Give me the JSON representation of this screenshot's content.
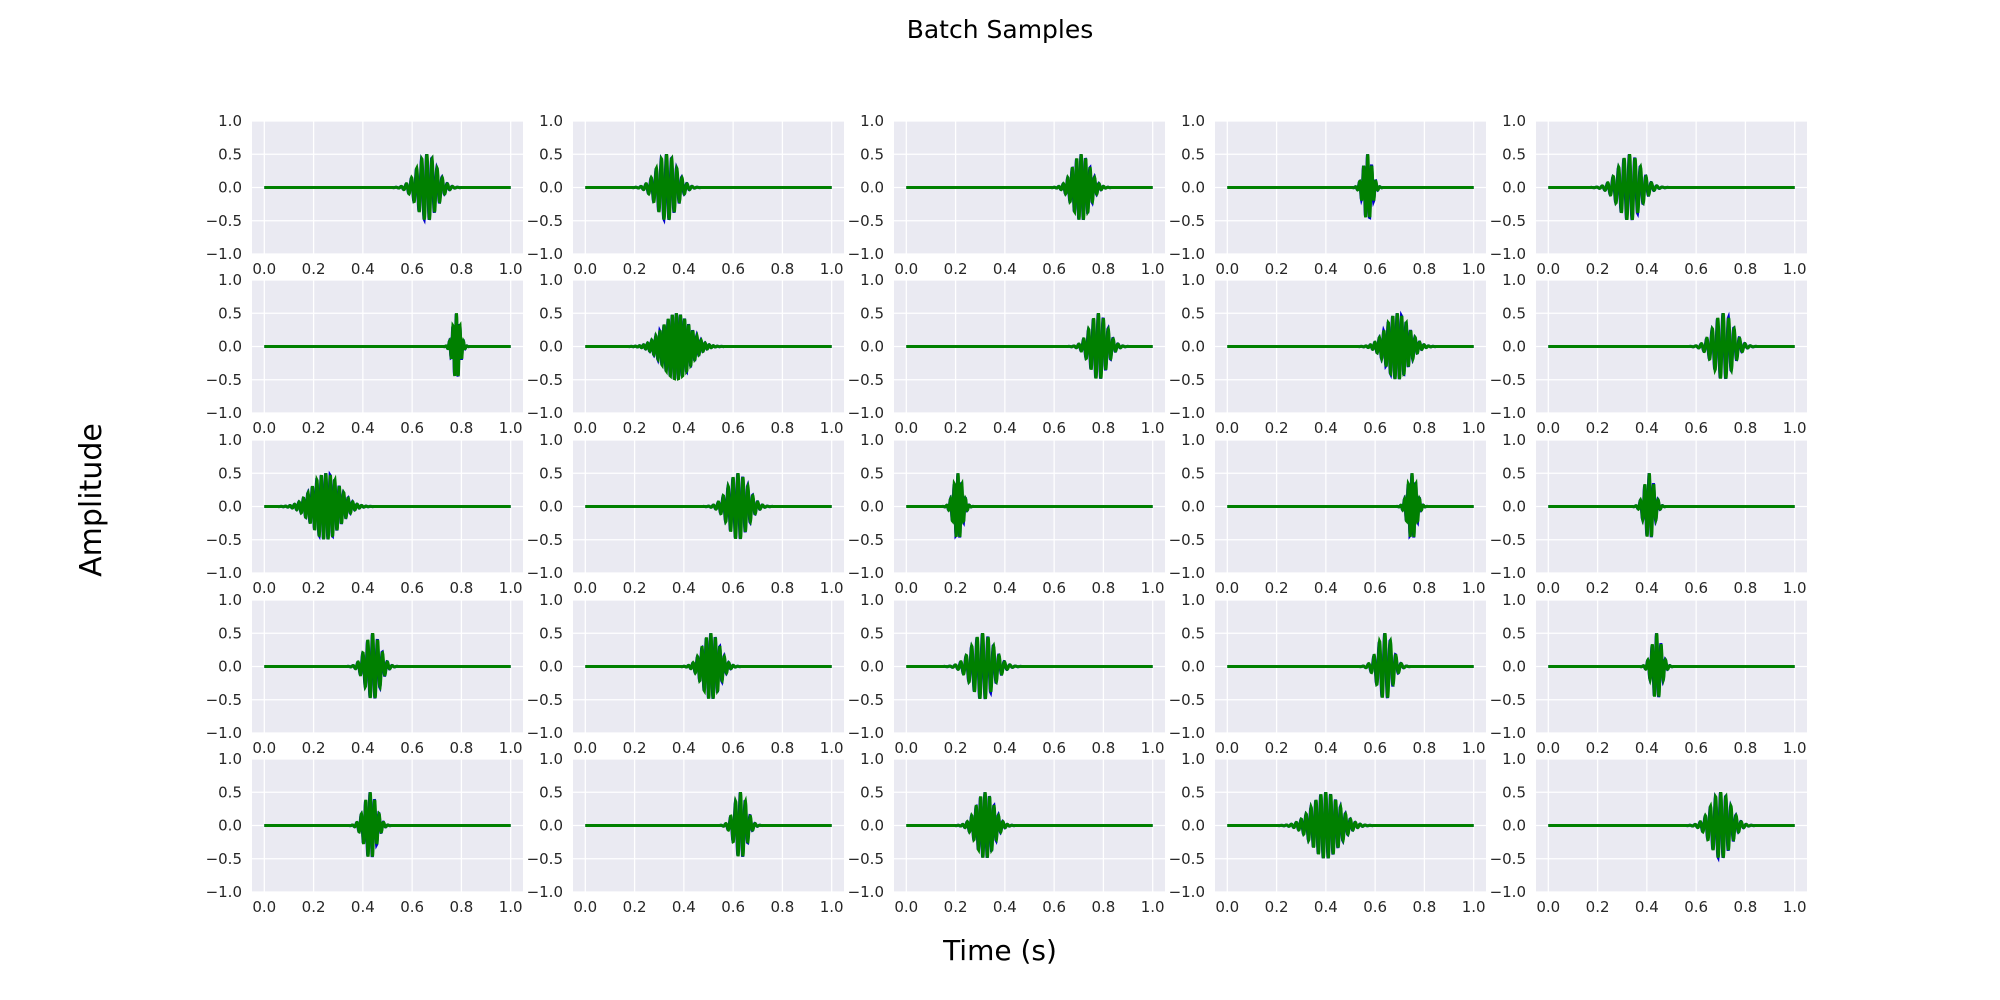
{
  "figure": {
    "title": "Batch Samples",
    "xlabel": "Time (s)",
    "ylabel": "Amplitude",
    "style": {
      "panel_bg": "#eaeaf2",
      "grid": "#ffffff",
      "blue": "#0000cc",
      "green": "#008000",
      "text": "#262626"
    }
  },
  "chart_data": {
    "type": "line",
    "grid": true,
    "layout": {
      "rows": 5,
      "cols": 5
    },
    "xlim": [
      0,
      1
    ],
    "ylim": [
      -1,
      1
    ],
    "xticks": [
      0.0,
      0.2,
      0.4,
      0.6,
      0.8,
      1.0
    ],
    "xtick_labels": [
      "0.0",
      "0.2",
      "0.4",
      "0.6",
      "0.8",
      "1.0"
    ],
    "yticks": [
      1.0,
      0.5,
      0.0,
      -0.5,
      -1.0
    ],
    "ytick_labels": [
      "1.0",
      "0.5",
      "0.0",
      "−0.5",
      "−1.0"
    ],
    "series_colors": [
      "#0000cc",
      "#008000"
    ],
    "amplitude": 0.5,
    "panels": [
      {
        "center": 0.66,
        "width": 0.04,
        "freq": 48
      },
      {
        "center": 0.33,
        "width": 0.04,
        "freq": 48
      },
      {
        "center": 0.71,
        "width": 0.035,
        "freq": 55
      },
      {
        "center": 0.57,
        "width": 0.018,
        "freq": 60
      },
      {
        "center": 0.33,
        "width": 0.045,
        "freq": 45
      },
      {
        "center": 0.78,
        "width": 0.015,
        "freq": 70
      },
      {
        "center": 0.37,
        "width": 0.055,
        "freq": 60
      },
      {
        "center": 0.78,
        "width": 0.035,
        "freq": 50
      },
      {
        "center": 0.69,
        "width": 0.045,
        "freq": 55
      },
      {
        "center": 0.71,
        "width": 0.04,
        "freq": 45
      },
      {
        "center": 0.25,
        "width": 0.055,
        "freq": 55
      },
      {
        "center": 0.62,
        "width": 0.04,
        "freq": 50
      },
      {
        "center": 0.21,
        "width": 0.018,
        "freq": 65
      },
      {
        "center": 0.75,
        "width": 0.018,
        "freq": 65
      },
      {
        "center": 0.41,
        "width": 0.02,
        "freq": 55
      },
      {
        "center": 0.44,
        "width": 0.03,
        "freq": 50
      },
      {
        "center": 0.51,
        "width": 0.035,
        "freq": 55
      },
      {
        "center": 0.31,
        "width": 0.045,
        "freq": 45
      },
      {
        "center": 0.64,
        "width": 0.03,
        "freq": 45
      },
      {
        "center": 0.44,
        "width": 0.02,
        "freq": 55
      },
      {
        "center": 0.43,
        "width": 0.025,
        "freq": 55
      },
      {
        "center": 0.63,
        "width": 0.025,
        "freq": 50
      },
      {
        "center": 0.32,
        "width": 0.035,
        "freq": 55
      },
      {
        "center": 0.4,
        "width": 0.055,
        "freq": 50
      },
      {
        "center": 0.7,
        "width": 0.04,
        "freq": 48
      }
    ]
  }
}
